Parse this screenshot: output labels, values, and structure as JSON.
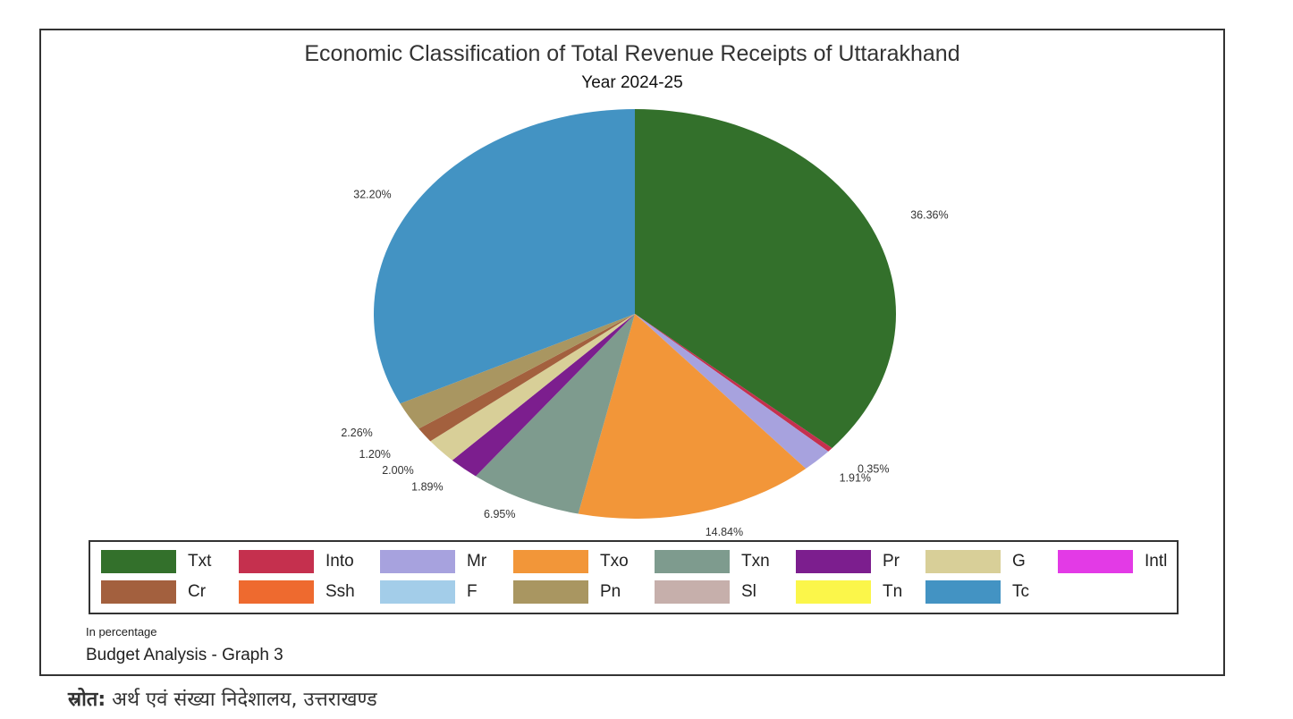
{
  "chart_data": {
    "type": "pie",
    "title": "Economic Classification of Total Revenue Receipts of Uttarakhand",
    "subtitle": "Year 2024-25",
    "slices": [
      {
        "name": "Txt",
        "value": 36.36,
        "label": "36.36%",
        "color": "#33702b"
      },
      {
        "name": "Into",
        "value": 0.35,
        "label": "0.35%",
        "color": "#c5304e"
      },
      {
        "name": "Mr",
        "value": 1.91,
        "label": "1.91%",
        "color": "#a7a2de"
      },
      {
        "name": "Txo",
        "value": 14.84,
        "label": "14.84%",
        "color": "#f29639"
      },
      {
        "name": "Txn",
        "value": 6.95,
        "label": "6.95%",
        "color": "#7e9b8e"
      },
      {
        "name": "Pr",
        "value": 1.89,
        "label": "1.89%",
        "color": "#7c1e8e"
      },
      {
        "name": "G",
        "value": 2.0,
        "label": "2.00%",
        "color": "#d8cf98"
      },
      {
        "name": "Intl",
        "value": 0.0,
        "label": "",
        "color": "#e33ae6"
      },
      {
        "name": "Cr",
        "value": 1.2,
        "label": "1.20%",
        "color": "#a3603e"
      },
      {
        "name": "Ssh",
        "value": 0.0,
        "label": "",
        "color": "#ee6a2f"
      },
      {
        "name": "F",
        "value": 0.0,
        "label": "",
        "color": "#a3cde9"
      },
      {
        "name": "Pn",
        "value": 2.26,
        "label": "2.26%",
        "color": "#a99661"
      },
      {
        "name": "Sl",
        "value": 0.0,
        "label": "",
        "color": "#c6afab"
      },
      {
        "name": "Tn",
        "value": 0.0,
        "label": "",
        "color": "#fbf64a"
      },
      {
        "name": "Tc",
        "value": 32.2,
        "label": "32.20%",
        "color": "#4393c3"
      }
    ],
    "legend_placement": "bottom"
  },
  "notes": {
    "unit": "In percentage",
    "caption": "Budget Analysis - Graph 3"
  },
  "source": {
    "label": "स्रोत:",
    "text": "अर्थ एवं संख्या निदेशालय, उत्तराखण्ड"
  }
}
